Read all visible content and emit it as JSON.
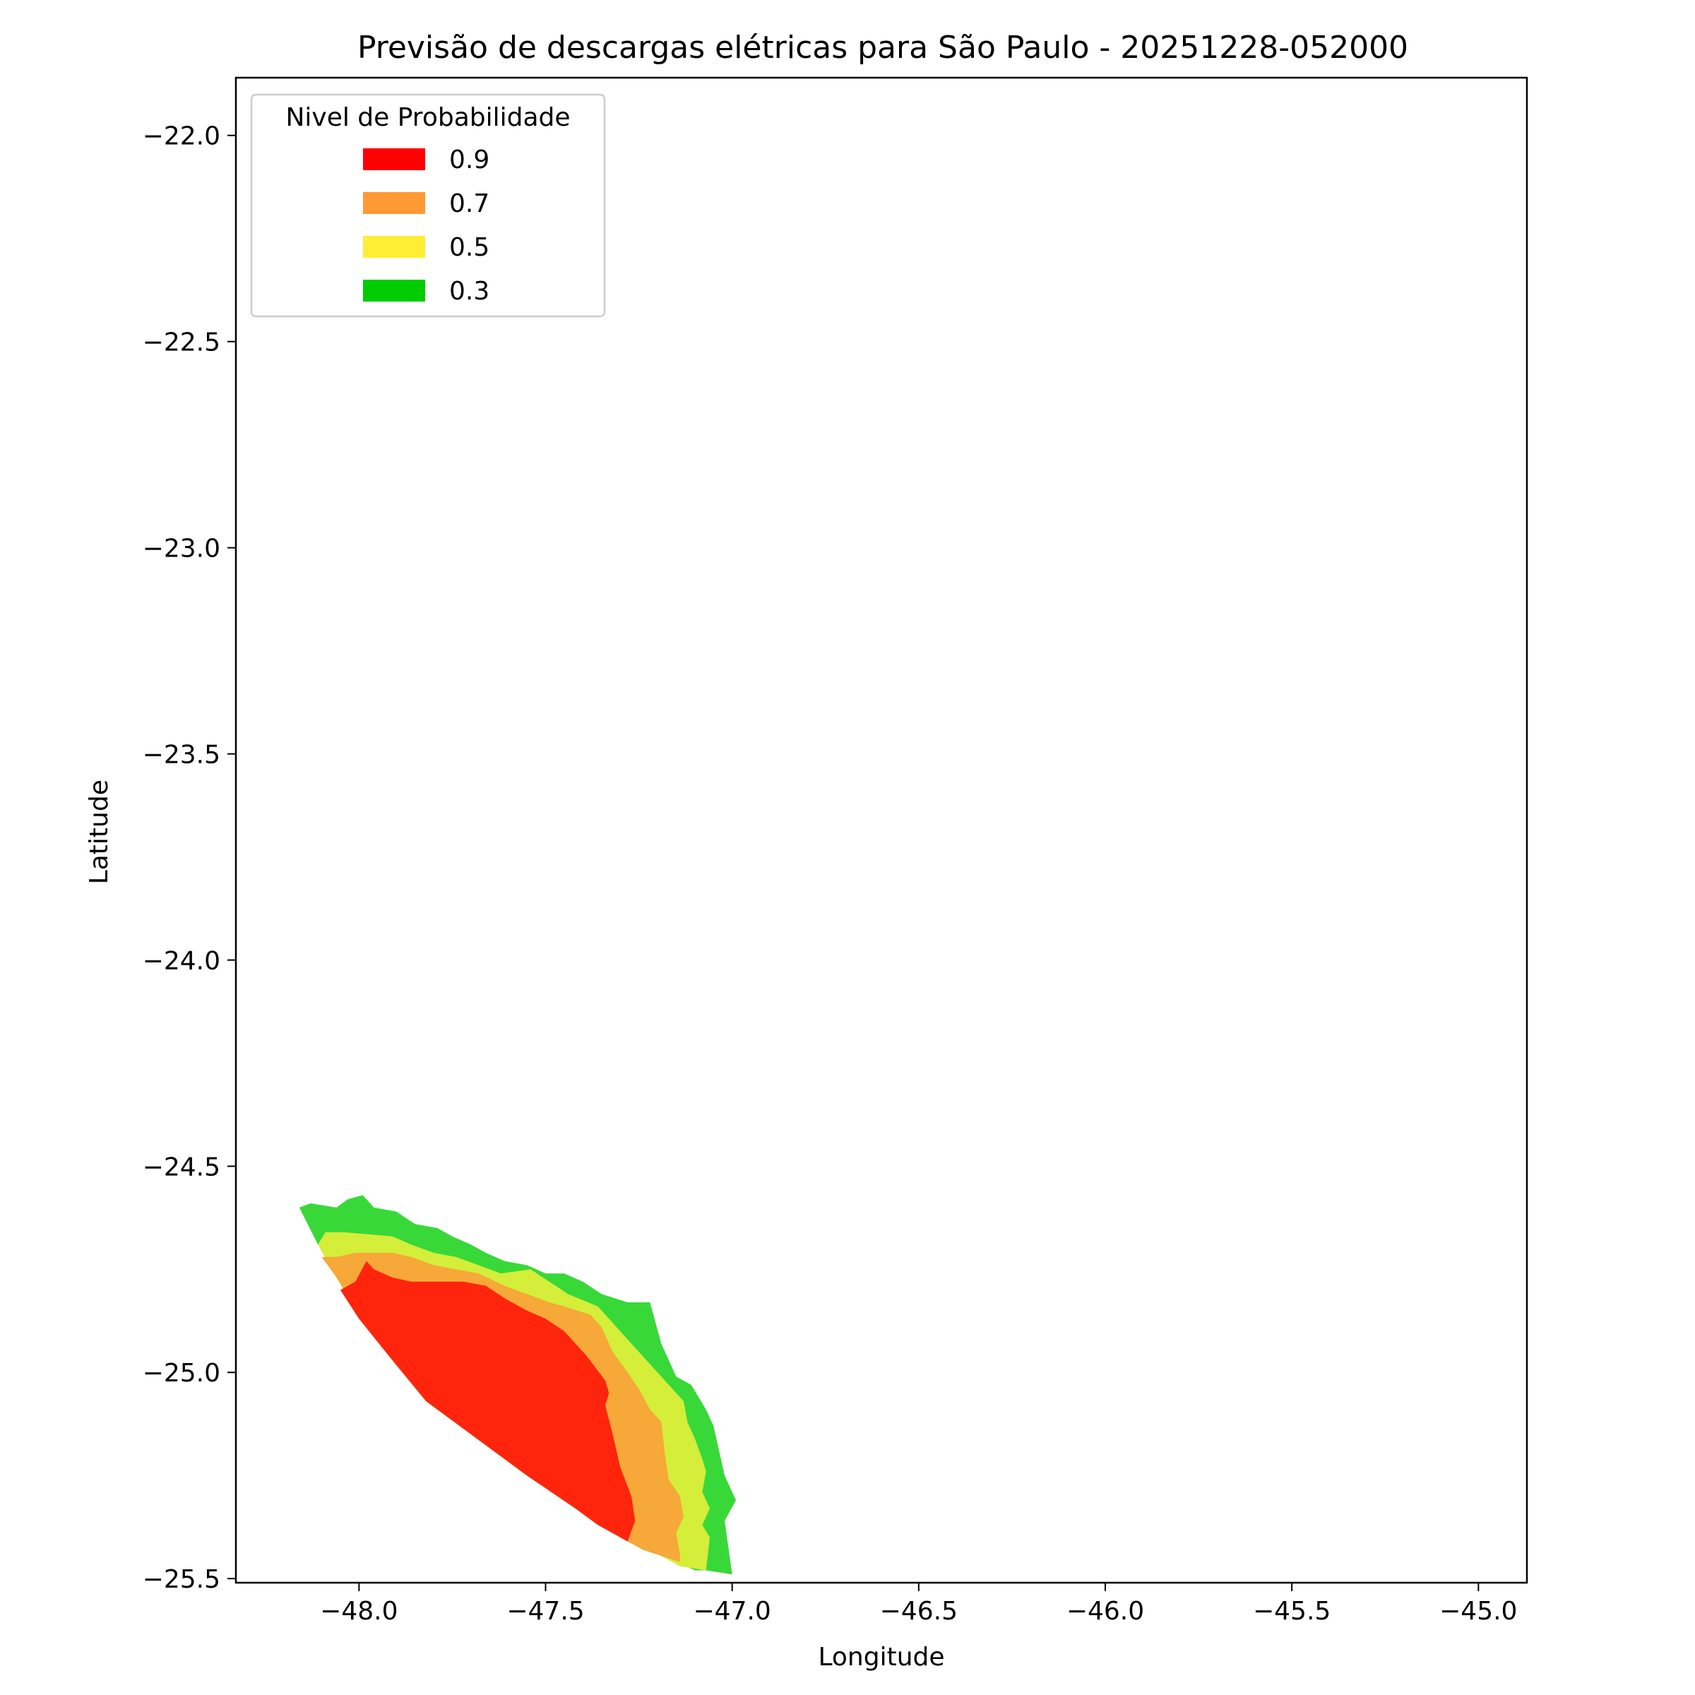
{
  "chart_data": {
    "type": "contour",
    "title": "Previsão de descargas elétricas para São Paulo - 20251228-052000",
    "xlabel": "Longitude",
    "ylabel": "Latitude",
    "xlim": [
      -48.33,
      -44.87
    ],
    "ylim": [
      -25.51,
      -21.86
    ],
    "x_ticks": [
      -48.0,
      -47.5,
      -47.0,
      -46.5,
      -46.0,
      -45.5,
      -45.0
    ],
    "x_tick_labels": [
      "−48.0",
      "−47.5",
      "−47.0",
      "−46.5",
      "−46.0",
      "−45.5",
      "−45.0"
    ],
    "y_ticks": [
      -22.0,
      -22.5,
      -23.0,
      -23.5,
      -24.0,
      -24.5,
      -25.0,
      -25.5
    ],
    "y_tick_labels": [
      "−22.0",
      "−22.5",
      "−23.0",
      "−23.5",
      "−24.0",
      "−24.5",
      "−25.0",
      "−25.5"
    ],
    "legend": {
      "title": "Nivel de Probabilidade",
      "placement": "upper-left",
      "entries": [
        {
          "label": "0.9",
          "color": "#ff0000"
        },
        {
          "label": "0.7",
          "color": "#ff9933"
        },
        {
          "label": "0.5",
          "color": "#ffee33"
        },
        {
          "label": "0.3",
          "color": "#00cc00"
        }
      ]
    },
    "levels": [
      {
        "level": "0.3",
        "color": "#39d839",
        "polygon": [
          [
            -48.16,
            -24.6
          ],
          [
            -48.13,
            -24.59
          ],
          [
            -48.06,
            -24.6
          ],
          [
            -48.03,
            -24.58
          ],
          [
            -47.99,
            -24.57
          ],
          [
            -47.96,
            -24.6
          ],
          [
            -47.9,
            -24.61
          ],
          [
            -47.85,
            -24.64
          ],
          [
            -47.79,
            -24.65
          ],
          [
            -47.75,
            -24.67
          ],
          [
            -47.7,
            -24.69
          ],
          [
            -47.66,
            -24.71
          ],
          [
            -47.61,
            -24.73
          ],
          [
            -47.55,
            -24.74
          ],
          [
            -47.5,
            -24.76
          ],
          [
            -47.45,
            -24.76
          ],
          [
            -47.4,
            -24.78
          ],
          [
            -47.35,
            -24.81
          ],
          [
            -47.28,
            -24.83
          ],
          [
            -47.22,
            -24.83
          ],
          [
            -47.19,
            -24.93
          ],
          [
            -47.15,
            -25.01
          ],
          [
            -47.11,
            -25.03
          ],
          [
            -47.07,
            -25.09
          ],
          [
            -47.05,
            -25.13
          ],
          [
            -47.02,
            -25.25
          ],
          [
            -46.99,
            -25.31
          ],
          [
            -47.02,
            -25.36
          ],
          [
            -47.0,
            -25.49
          ],
          [
            -47.07,
            -25.48
          ],
          [
            -47.1,
            -25.48
          ],
          [
            -47.17,
            -25.45
          ],
          [
            -47.24,
            -25.42
          ],
          [
            -47.3,
            -25.4
          ],
          [
            -47.42,
            -25.33
          ],
          [
            -47.55,
            -25.25
          ],
          [
            -47.7,
            -25.15
          ],
          [
            -47.82,
            -25.07
          ],
          [
            -47.92,
            -24.96
          ],
          [
            -48.0,
            -24.86
          ],
          [
            -48.06,
            -24.77
          ],
          [
            -48.11,
            -24.69
          ],
          [
            -48.16,
            -24.6
          ]
        ]
      },
      {
        "level": "0.5",
        "color": "#d4ee3a",
        "polygon": [
          [
            -48.11,
            -24.69
          ],
          [
            -48.09,
            -24.66
          ],
          [
            -48.04,
            -24.66
          ],
          [
            -47.91,
            -24.67
          ],
          [
            -47.86,
            -24.69
          ],
          [
            -47.8,
            -24.71
          ],
          [
            -47.74,
            -24.72
          ],
          [
            -47.68,
            -24.74
          ],
          [
            -47.62,
            -24.76
          ],
          [
            -47.54,
            -24.75
          ],
          [
            -47.49,
            -24.78
          ],
          [
            -47.44,
            -24.81
          ],
          [
            -47.36,
            -24.84
          ],
          [
            -47.3,
            -24.9
          ],
          [
            -47.22,
            -24.98
          ],
          [
            -47.17,
            -25.03
          ],
          [
            -47.13,
            -25.07
          ],
          [
            -47.12,
            -25.12
          ],
          [
            -47.1,
            -25.16
          ],
          [
            -47.08,
            -25.21
          ],
          [
            -47.07,
            -25.24
          ],
          [
            -47.08,
            -25.29
          ],
          [
            -47.06,
            -25.33
          ],
          [
            -47.08,
            -25.37
          ],
          [
            -47.06,
            -25.4
          ],
          [
            -47.07,
            -25.48
          ],
          [
            -47.14,
            -25.47
          ],
          [
            -47.24,
            -25.42
          ],
          [
            -47.3,
            -25.4
          ],
          [
            -47.42,
            -25.33
          ],
          [
            -47.55,
            -25.25
          ],
          [
            -47.7,
            -25.15
          ],
          [
            -47.82,
            -25.07
          ],
          [
            -47.92,
            -24.96
          ],
          [
            -48.0,
            -24.86
          ],
          [
            -48.06,
            -24.77
          ],
          [
            -48.11,
            -24.69
          ]
        ]
      },
      {
        "level": "0.7",
        "color": "#f6a838",
        "polygon": [
          [
            -48.1,
            -24.72
          ],
          [
            -48.06,
            -24.72
          ],
          [
            -48.01,
            -24.71
          ],
          [
            -47.91,
            -24.71
          ],
          [
            -47.86,
            -24.72
          ],
          [
            -47.8,
            -24.74
          ],
          [
            -47.74,
            -24.75
          ],
          [
            -47.68,
            -24.76
          ],
          [
            -47.61,
            -24.79
          ],
          [
            -47.55,
            -24.81
          ],
          [
            -47.49,
            -24.83
          ],
          [
            -47.45,
            -24.84
          ],
          [
            -47.38,
            -24.86
          ],
          [
            -47.35,
            -24.89
          ],
          [
            -47.32,
            -24.95
          ],
          [
            -47.28,
            -25.0
          ],
          [
            -47.25,
            -25.04
          ],
          [
            -47.22,
            -25.09
          ],
          [
            -47.19,
            -25.12
          ],
          [
            -47.18,
            -25.2
          ],
          [
            -47.17,
            -25.26
          ],
          [
            -47.14,
            -25.3
          ],
          [
            -47.13,
            -25.35
          ],
          [
            -47.15,
            -25.39
          ],
          [
            -47.14,
            -25.44
          ],
          [
            -47.14,
            -25.46
          ],
          [
            -47.24,
            -25.43
          ],
          [
            -47.3,
            -25.4
          ],
          [
            -47.42,
            -25.33
          ],
          [
            -47.55,
            -25.25
          ],
          [
            -47.7,
            -25.15
          ],
          [
            -47.82,
            -25.07
          ],
          [
            -47.92,
            -24.96
          ],
          [
            -48.0,
            -24.86
          ],
          [
            -48.06,
            -24.77
          ],
          [
            -48.1,
            -24.72
          ]
        ]
      },
      {
        "level": "0.9",
        "color": "#fe250c",
        "polygon": [
          [
            -48.05,
            -24.8
          ],
          [
            -48.01,
            -24.78
          ],
          [
            -47.98,
            -24.73
          ],
          [
            -47.96,
            -24.75
          ],
          [
            -47.91,
            -24.77
          ],
          [
            -47.86,
            -24.78
          ],
          [
            -47.8,
            -24.78
          ],
          [
            -47.72,
            -24.78
          ],
          [
            -47.66,
            -24.79
          ],
          [
            -47.61,
            -24.82
          ],
          [
            -47.55,
            -24.85
          ],
          [
            -47.5,
            -24.87
          ],
          [
            -47.45,
            -24.9
          ],
          [
            -47.42,
            -24.93
          ],
          [
            -47.39,
            -24.96
          ],
          [
            -47.34,
            -25.02
          ],
          [
            -47.33,
            -25.05
          ],
          [
            -47.34,
            -25.08
          ],
          [
            -47.32,
            -25.15
          ],
          [
            -47.3,
            -25.23
          ],
          [
            -47.27,
            -25.3
          ],
          [
            -47.26,
            -25.36
          ],
          [
            -47.28,
            -25.41
          ],
          [
            -47.3,
            -25.4
          ],
          [
            -47.36,
            -25.37
          ],
          [
            -47.42,
            -25.33
          ],
          [
            -47.55,
            -25.25
          ],
          [
            -47.7,
            -25.15
          ],
          [
            -47.82,
            -25.07
          ],
          [
            -47.92,
            -24.96
          ],
          [
            -48.0,
            -24.87
          ],
          [
            -48.05,
            -24.8
          ]
        ]
      }
    ]
  }
}
